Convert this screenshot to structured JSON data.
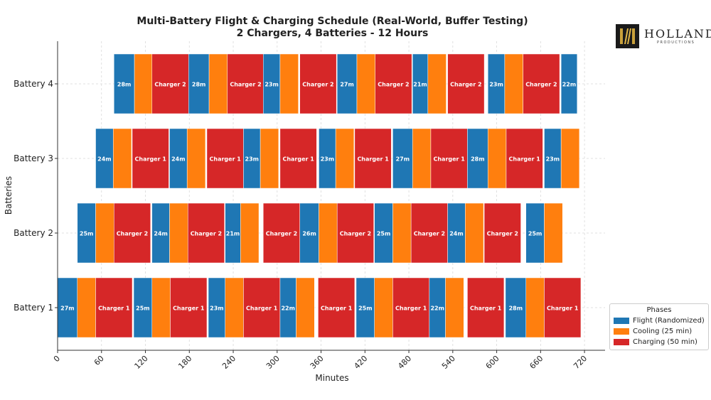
{
  "chart_data": {
    "type": "gantt",
    "title": "Multi-Battery Flight & Charging Schedule (Real-World, Buffer Testing)",
    "subtitle": "2 Chargers, 4 Batteries - 12 Hours",
    "xlabel": "Minutes",
    "ylabel": "Batteries",
    "xlim": [
      0,
      750
    ],
    "xticks": [
      0,
      60,
      120,
      180,
      240,
      300,
      360,
      420,
      480,
      540,
      600,
      660,
      720
    ],
    "grid": true,
    "legend": {
      "title": "Phases",
      "placement": "bottom-right",
      "entries": [
        {
          "key": "flight",
          "label": "Flight (Randomized)"
        },
        {
          "key": "cooling",
          "label": "Cooling (25 min)"
        },
        {
          "key": "charging",
          "label": "Charging (50 min)"
        }
      ]
    },
    "colors": {
      "flight": "#1f77b4",
      "cooling": "#ff7f0e",
      "charging": "#d62728"
    },
    "batteries": [
      {
        "name": "Battery 1",
        "segments": [
          {
            "phase": "flight",
            "start": 0,
            "duration": 27,
            "label": "27m"
          },
          {
            "phase": "cooling",
            "start": 27,
            "duration": 25,
            "label": ""
          },
          {
            "phase": "charging",
            "start": 52,
            "duration": 50,
            "label": "Charger 1"
          },
          {
            "phase": "flight",
            "start": 104,
            "duration": 25,
            "label": "25m"
          },
          {
            "phase": "cooling",
            "start": 129,
            "duration": 25,
            "label": ""
          },
          {
            "phase": "charging",
            "start": 154,
            "duration": 50,
            "label": "Charger 1"
          },
          {
            "phase": "flight",
            "start": 206,
            "duration": 23,
            "label": "23m"
          },
          {
            "phase": "cooling",
            "start": 229,
            "duration": 25,
            "label": ""
          },
          {
            "phase": "charging",
            "start": 254,
            "duration": 50,
            "label": "Charger 1"
          },
          {
            "phase": "flight",
            "start": 304,
            "duration": 22,
            "label": "22m"
          },
          {
            "phase": "cooling",
            "start": 326,
            "duration": 25,
            "label": ""
          },
          {
            "phase": "charging",
            "start": 356,
            "duration": 50,
            "label": "Charger 1"
          },
          {
            "phase": "flight",
            "start": 408,
            "duration": 25,
            "label": "25m"
          },
          {
            "phase": "cooling",
            "start": 433,
            "duration": 25,
            "label": ""
          },
          {
            "phase": "charging",
            "start": 458,
            "duration": 50,
            "label": "Charger 1"
          },
          {
            "phase": "flight",
            "start": 508,
            "duration": 22,
            "label": "22m"
          },
          {
            "phase": "cooling",
            "start": 530,
            "duration": 25,
            "label": ""
          },
          {
            "phase": "charging",
            "start": 560,
            "duration": 50,
            "label": "Charger 1"
          },
          {
            "phase": "flight",
            "start": 612,
            "duration": 28,
            "label": "28m"
          },
          {
            "phase": "cooling",
            "start": 640,
            "duration": 25,
            "label": ""
          },
          {
            "phase": "charging",
            "start": 665,
            "duration": 50,
            "label": "Charger 1"
          }
        ]
      },
      {
        "name": "Battery 2",
        "segments": [
          {
            "phase": "flight",
            "start": 27,
            "duration": 25,
            "label": "25m"
          },
          {
            "phase": "cooling",
            "start": 52,
            "duration": 25,
            "label": ""
          },
          {
            "phase": "charging",
            "start": 77,
            "duration": 50,
            "label": "Charger 2"
          },
          {
            "phase": "flight",
            "start": 129,
            "duration": 24,
            "label": "24m"
          },
          {
            "phase": "cooling",
            "start": 153,
            "duration": 25,
            "label": ""
          },
          {
            "phase": "charging",
            "start": 178,
            "duration": 50,
            "label": "Charger 2"
          },
          {
            "phase": "flight",
            "start": 229,
            "duration": 21,
            "label": "21m"
          },
          {
            "phase": "cooling",
            "start": 250,
            "duration": 25,
            "label": ""
          },
          {
            "phase": "charging",
            "start": 281,
            "duration": 50,
            "label": "Charger 2"
          },
          {
            "phase": "flight",
            "start": 331,
            "duration": 26,
            "label": "26m"
          },
          {
            "phase": "cooling",
            "start": 357,
            "duration": 25,
            "label": ""
          },
          {
            "phase": "charging",
            "start": 382,
            "duration": 50,
            "label": "Charger 2"
          },
          {
            "phase": "flight",
            "start": 433,
            "duration": 25,
            "label": "25m"
          },
          {
            "phase": "cooling",
            "start": 458,
            "duration": 25,
            "label": ""
          },
          {
            "phase": "charging",
            "start": 483,
            "duration": 50,
            "label": "Charger 2"
          },
          {
            "phase": "flight",
            "start": 533,
            "duration": 24,
            "label": "24m"
          },
          {
            "phase": "cooling",
            "start": 557,
            "duration": 25,
            "label": ""
          },
          {
            "phase": "charging",
            "start": 583,
            "duration": 50,
            "label": "Charger 2"
          },
          {
            "phase": "flight",
            "start": 640,
            "duration": 25,
            "label": "25m"
          },
          {
            "phase": "cooling",
            "start": 665,
            "duration": 25,
            "label": ""
          }
        ]
      },
      {
        "name": "Battery 3",
        "segments": [
          {
            "phase": "flight",
            "start": 52,
            "duration": 24,
            "label": "24m"
          },
          {
            "phase": "cooling",
            "start": 76,
            "duration": 25,
            "label": ""
          },
          {
            "phase": "charging",
            "start": 102,
            "duration": 50,
            "label": "Charger 1"
          },
          {
            "phase": "flight",
            "start": 153,
            "duration": 24,
            "label": "24m"
          },
          {
            "phase": "cooling",
            "start": 177,
            "duration": 25,
            "label": ""
          },
          {
            "phase": "charging",
            "start": 204,
            "duration": 50,
            "label": "Charger 1"
          },
          {
            "phase": "flight",
            "start": 254,
            "duration": 23,
            "label": "23m"
          },
          {
            "phase": "cooling",
            "start": 277,
            "duration": 25,
            "label": ""
          },
          {
            "phase": "charging",
            "start": 304,
            "duration": 50,
            "label": "Charger 1"
          },
          {
            "phase": "flight",
            "start": 357,
            "duration": 23,
            "label": "23m"
          },
          {
            "phase": "cooling",
            "start": 380,
            "duration": 25,
            "label": ""
          },
          {
            "phase": "charging",
            "start": 406,
            "duration": 50,
            "label": "Charger 1"
          },
          {
            "phase": "flight",
            "start": 458,
            "duration": 27,
            "label": "27m"
          },
          {
            "phase": "cooling",
            "start": 485,
            "duration": 25,
            "label": ""
          },
          {
            "phase": "charging",
            "start": 510,
            "duration": 50,
            "label": "Charger 1"
          },
          {
            "phase": "flight",
            "start": 560,
            "duration": 28,
            "label": "28m"
          },
          {
            "phase": "cooling",
            "start": 588,
            "duration": 25,
            "label": ""
          },
          {
            "phase": "charging",
            "start": 613,
            "duration": 50,
            "label": "Charger 1"
          },
          {
            "phase": "flight",
            "start": 665,
            "duration": 23,
            "label": "23m"
          },
          {
            "phase": "cooling",
            "start": 688,
            "duration": 25,
            "label": ""
          }
        ]
      },
      {
        "name": "Battery 4",
        "segments": [
          {
            "phase": "flight",
            "start": 77,
            "duration": 28,
            "label": "28m"
          },
          {
            "phase": "cooling",
            "start": 105,
            "duration": 25,
            "label": ""
          },
          {
            "phase": "charging",
            "start": 129,
            "duration": 50,
            "label": "Charger 2"
          },
          {
            "phase": "flight",
            "start": 179,
            "duration": 28,
            "label": "28m"
          },
          {
            "phase": "cooling",
            "start": 207,
            "duration": 25,
            "label": ""
          },
          {
            "phase": "charging",
            "start": 232,
            "duration": 50,
            "label": "Charger 2"
          },
          {
            "phase": "flight",
            "start": 281,
            "duration": 23,
            "label": "23m"
          },
          {
            "phase": "cooling",
            "start": 304,
            "duration": 25,
            "label": ""
          },
          {
            "phase": "charging",
            "start": 331,
            "duration": 50,
            "label": "Charger 2"
          },
          {
            "phase": "flight",
            "start": 382,
            "duration": 27,
            "label": "27m"
          },
          {
            "phase": "cooling",
            "start": 409,
            "duration": 25,
            "label": ""
          },
          {
            "phase": "charging",
            "start": 434,
            "duration": 50,
            "label": "Charger 2"
          },
          {
            "phase": "flight",
            "start": 485,
            "duration": 21,
            "label": "21m"
          },
          {
            "phase": "cooling",
            "start": 506,
            "duration": 25,
            "label": ""
          },
          {
            "phase": "charging",
            "start": 533,
            "duration": 50,
            "label": "Charger 2"
          },
          {
            "phase": "flight",
            "start": 588,
            "duration": 23,
            "label": "23m"
          },
          {
            "phase": "cooling",
            "start": 611,
            "duration": 25,
            "label": ""
          },
          {
            "phase": "charging",
            "start": 636,
            "duration": 50,
            "label": "Charger 2"
          },
          {
            "phase": "flight",
            "start": 688,
            "duration": 22,
            "label": "22m"
          }
        ]
      }
    ]
  },
  "logo": {
    "initials": "H",
    "word": "HOLLAND",
    "sub": "PRODUCTIONS"
  }
}
